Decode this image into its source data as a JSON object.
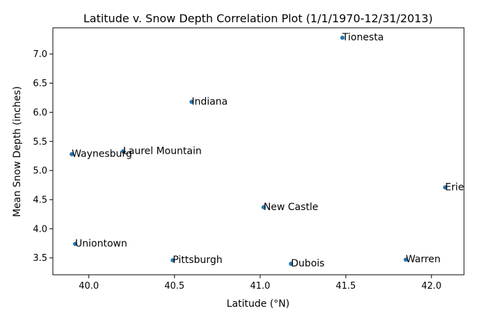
{
  "chart_data": {
    "type": "scatter",
    "title": "Latitude v. Snow Depth Correlation Plot (1/1/1970-12/31/2013)",
    "xlabel": "Latitude (°N)",
    "ylabel": "Mean Snow Depth (inches)",
    "xlim": [
      39.79,
      42.19
    ],
    "ylim": [
      3.21,
      7.45
    ],
    "xticks": [
      40.0,
      40.5,
      41.0,
      41.5,
      42.0
    ],
    "xtick_labels": [
      "40.0",
      "40.5",
      "41.0",
      "41.5",
      "42.0"
    ],
    "yticks": [
      3.5,
      4.0,
      4.5,
      5.0,
      5.5,
      6.0,
      6.5,
      7.0
    ],
    "ytick_labels": [
      "3.5",
      "4.0",
      "4.5",
      "5.0",
      "5.5",
      "6.0",
      "6.5",
      "7.0"
    ],
    "grid": false,
    "marker_color": "#1f77b4",
    "points": [
      {
        "label": "Tionesta",
        "x": 41.48,
        "y": 7.28
      },
      {
        "label": "Indiana",
        "x": 40.6,
        "y": 6.18
      },
      {
        "label": "Laurel Mountain",
        "x": 40.2,
        "y": 5.33
      },
      {
        "label": "Waynesburg",
        "x": 39.9,
        "y": 5.28
      },
      {
        "label": "Erie",
        "x": 42.08,
        "y": 4.71
      },
      {
        "label": "New Castle",
        "x": 41.02,
        "y": 4.37
      },
      {
        "label": "Uniontown",
        "x": 39.92,
        "y": 3.74
      },
      {
        "label": "Pittsburgh",
        "x": 40.49,
        "y": 3.46
      },
      {
        "label": "Warren",
        "x": 41.85,
        "y": 3.47
      },
      {
        "label": "Dubois",
        "x": 41.18,
        "y": 3.4
      }
    ]
  }
}
